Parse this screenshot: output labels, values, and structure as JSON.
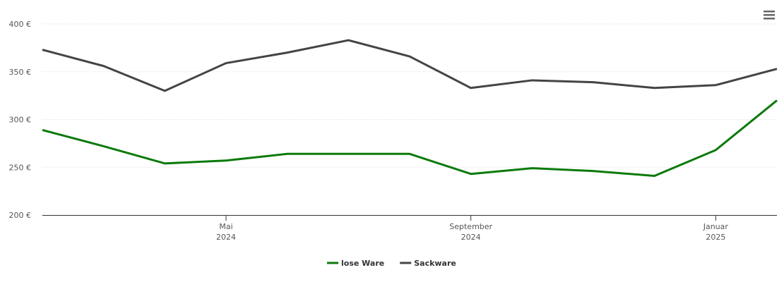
{
  "chart_data": {
    "type": "line",
    "x": [
      "2024-02",
      "2024-03",
      "2024-04",
      "2024-05",
      "2024-06",
      "2024-07",
      "2024-08",
      "2024-09",
      "2024-10",
      "2024-11",
      "2024-12",
      "2025-01",
      "2025-02"
    ],
    "series": [
      {
        "name": "lose Ware",
        "color": "#0a7a0a",
        "values": [
          289,
          272,
          254,
          257,
          264,
          264,
          264,
          243,
          249,
          246,
          241,
          268,
          320
        ]
      },
      {
        "name": "Sackware",
        "color": "#444444",
        "values": [
          373,
          356,
          330,
          359,
          370,
          383,
          366,
          333,
          341,
          339,
          333,
          336,
          353
        ]
      }
    ],
    "xlim": [
      "2024-02",
      "2025-02"
    ],
    "xticks": [
      {
        "value": "2024-05",
        "label": [
          "Mai",
          "2024"
        ]
      },
      {
        "value": "2024-09",
        "label": [
          "September",
          "2024"
        ]
      },
      {
        "value": "2025-01",
        "label": [
          "Januar",
          "2025"
        ]
      }
    ],
    "ylim": [
      200,
      400
    ],
    "yticks": [
      {
        "value": 200,
        "label": "200 €"
      },
      {
        "value": 250,
        "label": "250 €"
      },
      {
        "value": 300,
        "label": "300 €"
      },
      {
        "value": 350,
        "label": "350 €"
      },
      {
        "value": 400,
        "label": "400 €"
      }
    ],
    "grid": true
  }
}
